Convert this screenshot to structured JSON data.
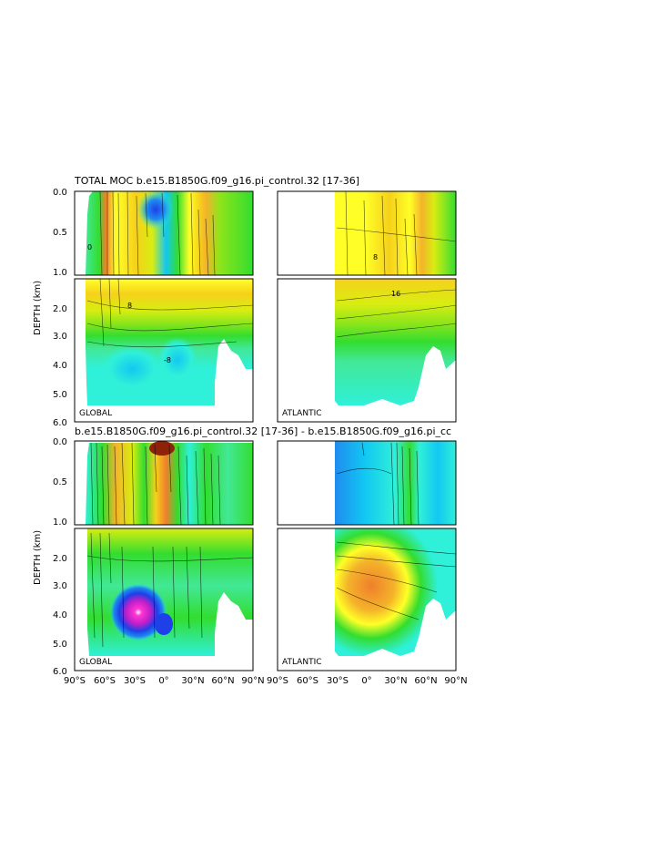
{
  "colors": {
    "scale": [
      "#7a0d94",
      "#c41fc8",
      "#ff36d6",
      "#1f3fe8",
      "#1e8cf0",
      "#12c8f2",
      "#2ff0d8",
      "#42e896",
      "#33dd2f",
      "#8ee51a",
      "#d8ed12",
      "#ffff27",
      "#f6d11b",
      "#f4b32a",
      "#f07f2c",
      "#d24c16",
      "#8e2208"
    ],
    "frame": "#000000",
    "background": "#ffffff"
  },
  "titles": {
    "top": "TOTAL MOC b.e15.B1850G.f09_g16.pi_control.32 [17-36]",
    "bottom": "b.e15.B1850G.f09_g16.pi_control.32 [17-36] - b.e15.B1850G.f09_g16.pi_cc"
  },
  "panel_labels": {
    "global": "GLOBAL",
    "atlantic": "ATLANTIC"
  },
  "chart_data": [
    {
      "type": "heatmap",
      "panel": "GLOBAL",
      "title": "TOTAL MOC b.e15.B1850G.f09_g16.pi_control.32 [17-36]",
      "ylabel": "DEPTH (km)",
      "xlabel": "",
      "x_ticks": [
        "90°S",
        "60°S",
        "30°S",
        "0°",
        "30°N",
        "60°N",
        "90°N"
      ],
      "y_ticks": [
        "0.0",
        "0.5",
        "1.0",
        "2.0",
        "3.0",
        "4.0",
        "5.0",
        "6.0"
      ],
      "xlim": [
        -90,
        90
      ],
      "ylim": [
        0,
        6
      ],
      "y_break_at": 1.0,
      "contour_labels": [
        "0",
        "8",
        "16",
        "-8"
      ],
      "features": "positive overturning cell (yellow/orange) in upper 2.5 km, negative abyssal cell (cyan) below 3 km"
    },
    {
      "type": "heatmap",
      "panel": "ATLANTIC",
      "title": "",
      "ylabel": "",
      "x_ticks": [
        "90°S",
        "60°S",
        "30°S",
        "0°",
        "30°N",
        "60°N",
        "90°N"
      ],
      "xlim": [
        -90,
        90
      ],
      "ylim": [
        0,
        6
      ],
      "data_x_range": [
        -33,
        90
      ],
      "contour_labels": [
        "0",
        "8",
        "16"
      ],
      "features": "single positive AMOC cell, max near 40°N, 1 km"
    },
    {
      "type": "heatmap",
      "panel": "GLOBAL",
      "title": "b.e15.B1850G.f09_g16.pi_control.32 [17-36] - b.e15.B1850G.f09_g16.pi_cc",
      "ylabel": "DEPTH (km)",
      "x_ticks": [
        "90°S",
        "60°S",
        "30°S",
        "0°",
        "30°N",
        "60°N",
        "90°N"
      ],
      "y_ticks": [
        "0.0",
        "0.5",
        "1.0",
        "2.0",
        "3.0",
        "4.0",
        "5.0",
        "6.0"
      ],
      "xlim": [
        -90,
        90
      ],
      "ylim": [
        0,
        6
      ],
      "features": "difference field; strong negative anomaly (magenta) near 30°S at 3.5-4 km"
    },
    {
      "type": "heatmap",
      "panel": "ATLANTIC",
      "title": "",
      "ylabel": "",
      "x_ticks": [
        "90°S",
        "60°S",
        "30°S",
        "0°",
        "30°N",
        "60°N",
        "90°N"
      ],
      "xlim": [
        -90,
        90
      ],
      "ylim": [
        0,
        6
      ],
      "data_x_range": [
        -33,
        90
      ],
      "features": "difference field; positive anomaly (orange) at 2.5-3.5 km south of equator"
    }
  ],
  "axis_labels": {
    "ylabel": "DEPTH (km)",
    "y_ticks": [
      "0.0",
      "0.5",
      "1.0",
      "2.0",
      "3.0",
      "4.0",
      "5.0",
      "6.0"
    ],
    "x_ticks": [
      "90°S",
      "60°S",
      "30°S",
      "0°",
      "30°N",
      "60°N",
      "90°N"
    ],
    "contours": [
      "0",
      "8",
      "16",
      "-8",
      "16"
    ]
  }
}
